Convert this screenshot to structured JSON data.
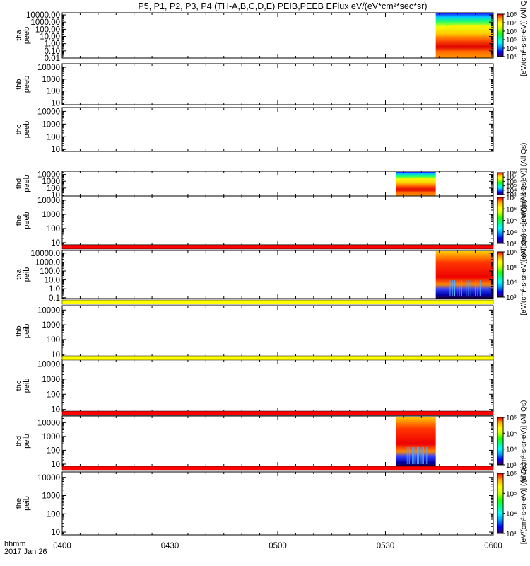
{
  "title": "P5, P1, P2, P3, P4 (TH-A,B,C,D,E) PEIB,PEEB EFlux eV/(eV*cm²*sec*sr)",
  "x_axis": {
    "ticks": [
      "0400",
      "0430",
      "0500",
      "0530",
      "0600"
    ],
    "tick_values": [
      0,
      30,
      60,
      90,
      120
    ],
    "range": [
      0,
      120
    ],
    "units": "minutes since 0400 UT",
    "label_line1": "hhmm",
    "label_line2": "2017 Jan 26"
  },
  "colorbar_label": "[eV/(cm²-s-sr-eV)] (All Qs)",
  "colorbar_colors": [
    "#3b0060",
    "#0000ff",
    "#0099ff",
    "#00ffff",
    "#00ff88",
    "#22ff00",
    "#ccff00",
    "#ffff00",
    "#ffaa00",
    "#ff0000"
  ],
  "chart_data": [
    {
      "type": "heatmap",
      "probe": "tha",
      "product": "peeb",
      "ylabel_line1": "tha",
      "ylabel_line2": "peeb",
      "y_scale": "log",
      "ylim": [
        0.01,
        20000
      ],
      "y_ticks": [
        "10000.00",
        "1000.00",
        "100.00",
        "10.00",
        "1.00",
        "0.10",
        "0.01"
      ],
      "data_x_range": [
        104,
        120
      ],
      "colorbar": {
        "scale": "log",
        "range": [
          1000,
          100000000
        ],
        "ticks": [
          "10⁸",
          "10⁷",
          "10⁶",
          "10⁵",
          "10⁴",
          "10³"
        ]
      }
    },
    {
      "type": "heatmap",
      "probe": "thb",
      "product": "peeb",
      "ylabel_line1": "thb",
      "ylabel_line2": "peeb",
      "y_scale": "log",
      "ylim": [
        7,
        20000
      ],
      "y_ticks": [
        "10000",
        "1000",
        "100",
        "10"
      ],
      "data_x_range": null,
      "colorbar": null
    },
    {
      "type": "heatmap",
      "probe": "thc",
      "product": "peeb",
      "ylabel_line1": "thc",
      "ylabel_line2": "peeb",
      "y_scale": "log",
      "ylim": [
        7,
        20000
      ],
      "y_ticks": [
        "10000",
        "1000",
        "100",
        "10"
      ],
      "data_x_range": null,
      "colorbar": null
    },
    {
      "type": "heatmap",
      "probe": "thd",
      "product": "peeb",
      "ylabel_line1": "thd",
      "ylabel_line2": "peeb",
      "y_scale": "log",
      "ylim": [
        7,
        30000
      ],
      "y_ticks": [
        "10000",
        "1000",
        "100",
        "10"
      ],
      "data_x_range": [
        93,
        104
      ],
      "colorbar": {
        "scale": "log",
        "range": [
          1000,
          100000000
        ],
        "ticks": [
          "10⁸",
          "10⁷",
          "10⁶",
          "10⁵",
          "10⁴",
          "10³"
        ]
      }
    },
    {
      "type": "heatmap",
      "probe": "the",
      "product": "peeb",
      "ylabel_line1": "the",
      "ylabel_line2": "peeb",
      "y_scale": "log",
      "ylim": [
        7,
        20000
      ],
      "y_ticks": [
        "10000",
        "1000",
        "100",
        "10"
      ],
      "data_x_range": null,
      "colorbar": {
        "scale": "log",
        "range": [
          1000,
          100000000
        ],
        "ticks": [
          "10⁷",
          "10⁶",
          "10⁵",
          "10⁴",
          "10³"
        ]
      }
    },
    {
      "type": "heatmap",
      "probe": "tha",
      "product": "peib",
      "ylabel_line1": "tha",
      "ylabel_line2": "peib",
      "y_scale": "log",
      "ylim": [
        0.08,
        20000
      ],
      "y_ticks": [
        "10000.0",
        "1000.0",
        "100.0",
        "10.0",
        "1.0",
        "0.1"
      ],
      "data_x_range": [
        104,
        120
      ],
      "colorbar": {
        "scale": "log",
        "range": [
          1000,
          1000000
        ],
        "ticks": [
          "10⁶",
          "10⁵",
          "10⁴",
          "10³"
        ]
      }
    },
    {
      "type": "heatmap",
      "probe": "thb",
      "product": "peib",
      "ylabel_line1": "thb",
      "ylabel_line2": "peib",
      "y_scale": "log",
      "ylim": [
        7,
        20000
      ],
      "y_ticks": [
        "10000",
        "1000",
        "100",
        "10"
      ],
      "data_x_range": null,
      "colorbar": null
    },
    {
      "type": "heatmap",
      "probe": "thc",
      "product": "peib",
      "ylabel_line1": "thc",
      "ylabel_line2": "peib",
      "y_scale": "log",
      "ylim": [
        7,
        20000
      ],
      "y_ticks": [
        "10000",
        "1000",
        "100",
        "10"
      ],
      "data_x_range": null,
      "colorbar": null
    },
    {
      "type": "heatmap",
      "probe": "thd",
      "product": "peib",
      "ylabel_line1": "thd",
      "ylabel_line2": "peib",
      "y_scale": "log",
      "ylim": [
        7,
        30000
      ],
      "y_ticks": [
        "10000",
        "1000",
        "100",
        "10"
      ],
      "data_x_range": [
        93,
        104
      ],
      "colorbar": {
        "scale": "log",
        "range": [
          1000,
          1000000
        ],
        "ticks": [
          "10⁶",
          "10⁵",
          "10⁴",
          "10³"
        ]
      }
    },
    {
      "type": "heatmap",
      "probe": "the",
      "product": "peib",
      "ylabel_line1": "the",
      "ylabel_line2": "peib",
      "y_scale": "log",
      "ylim": [
        7,
        20000
      ],
      "y_ticks": [
        "10000",
        "1000",
        "100",
        "10"
      ],
      "data_x_range": null,
      "colorbar": {
        "scale": "log",
        "range": [
          1000,
          1000000
        ],
        "ticks": [
          "10⁶",
          "10⁵",
          "10⁴",
          "10³"
        ]
      }
    }
  ],
  "status_bars": [
    {
      "color": "#ff0000"
    },
    {
      "color": "#ffff00"
    },
    {
      "color": "#ffff00"
    },
    {
      "color": "#ff0000"
    },
    {
      "color": "#ff0000"
    }
  ]
}
